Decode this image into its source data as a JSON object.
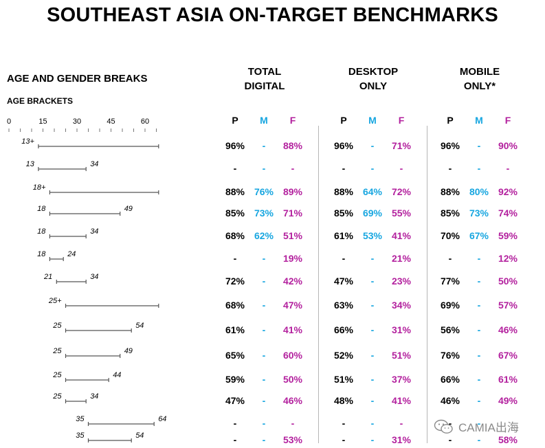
{
  "title": "SOUTHEAST ASIA ON-TARGET BENCHMARKS",
  "section_heading": "AGE AND GENDER BREAKS",
  "sub_heading": "AGE BRACKETS",
  "groups": [
    {
      "line1": "TOTAL",
      "line2": "DIGITAL"
    },
    {
      "line1": "DESKTOP",
      "line2": "ONLY"
    },
    {
      "line1": "MOBILE",
      "line2": "ONLY*"
    }
  ],
  "column_keys": [
    "P",
    "M",
    "F"
  ],
  "colors": {
    "p": "#000000",
    "m": "#17a6e0",
    "f": "#b3219e",
    "bracket": "#555555",
    "divider": "#b5b5b5"
  },
  "watermark": {
    "text": "CAMIA出海",
    "icon": "wechat-icon"
  },
  "chart_data": {
    "type": "table",
    "axis": {
      "ticks": [
        0,
        15,
        30,
        45,
        60
      ],
      "range": [
        0,
        66
      ],
      "minor_step": 5
    },
    "rows": [
      {
        "start_label": "13+",
        "end_label": "",
        "start": 13,
        "end": 66,
        "values": [
          [
            "96%",
            "-",
            "88%"
          ],
          [
            "96%",
            "-",
            "71%"
          ],
          [
            "96%",
            "-",
            "90%"
          ]
        ]
      },
      {
        "start_label": "13",
        "end_label": "34",
        "start": 13,
        "end": 34,
        "values": [
          [
            "-",
            "-",
            "-"
          ],
          [
            "-",
            "-",
            "-"
          ],
          [
            "-",
            "-",
            "-"
          ]
        ]
      },
      {
        "start_label": "18+",
        "end_label": "",
        "start": 18,
        "end": 66,
        "values": [
          [
            "88%",
            "76%",
            "89%"
          ],
          [
            "88%",
            "64%",
            "72%"
          ],
          [
            "88%",
            "80%",
            "92%"
          ]
        ]
      },
      {
        "start_label": "18",
        "end_label": "49",
        "start": 18,
        "end": 49,
        "values": [
          [
            "85%",
            "73%",
            "71%"
          ],
          [
            "85%",
            "69%",
            "55%"
          ],
          [
            "85%",
            "73%",
            "74%"
          ]
        ]
      },
      {
        "start_label": "18",
        "end_label": "34",
        "start": 18,
        "end": 34,
        "values": [
          [
            "68%",
            "62%",
            "51%"
          ],
          [
            "61%",
            "53%",
            "41%"
          ],
          [
            "70%",
            "67%",
            "59%"
          ]
        ]
      },
      {
        "start_label": "18",
        "end_label": "24",
        "start": 18,
        "end": 24,
        "values": [
          [
            "-",
            "-",
            "19%"
          ],
          [
            "-",
            "-",
            "21%"
          ],
          [
            "-",
            "-",
            "12%"
          ]
        ]
      },
      {
        "start_label": "21",
        "end_label": "34",
        "start": 21,
        "end": 34,
        "values": [
          [
            "72%",
            "-",
            "42%"
          ],
          [
            "47%",
            "-",
            "23%"
          ],
          [
            "77%",
            "-",
            "50%"
          ]
        ]
      },
      {
        "start_label": "25+",
        "end_label": "",
        "start": 25,
        "end": 66,
        "values": [
          [
            "68%",
            "-",
            "47%"
          ],
          [
            "63%",
            "-",
            "34%"
          ],
          [
            "69%",
            "-",
            "57%"
          ]
        ]
      },
      {
        "start_label": "25",
        "end_label": "54",
        "start": 25,
        "end": 54,
        "values": [
          [
            "61%",
            "-",
            "41%"
          ],
          [
            "66%",
            "-",
            "31%"
          ],
          [
            "56%",
            "-",
            "46%"
          ]
        ]
      },
      {
        "start_label": "25",
        "end_label": "49",
        "start": 25,
        "end": 49,
        "values": [
          [
            "65%",
            "-",
            "60%"
          ],
          [
            "52%",
            "-",
            "51%"
          ],
          [
            "76%",
            "-",
            "67%"
          ]
        ]
      },
      {
        "start_label": "25",
        "end_label": "44",
        "start": 25,
        "end": 44,
        "values": [
          [
            "59%",
            "-",
            "50%"
          ],
          [
            "51%",
            "-",
            "37%"
          ],
          [
            "66%",
            "-",
            "61%"
          ]
        ]
      },
      {
        "start_label": "25",
        "end_label": "34",
        "start": 25,
        "end": 34,
        "values": [
          [
            "47%",
            "-",
            "46%"
          ],
          [
            "48%",
            "-",
            "41%"
          ],
          [
            "46%",
            "-",
            "49%"
          ]
        ]
      },
      {
        "start_label": "35",
        "end_label": "64",
        "start": 35,
        "end": 64,
        "values": [
          [
            "-",
            "-",
            "-"
          ],
          [
            "-",
            "-",
            "-"
          ],
          [
            "-",
            "-",
            ""
          ]
        ]
      },
      {
        "start_label": "35",
        "end_label": "54",
        "start": 35,
        "end": 54,
        "values": [
          [
            "-",
            "-",
            "53%"
          ],
          [
            "-",
            "-",
            "31%"
          ],
          [
            "-",
            "-",
            "58%"
          ]
        ]
      }
    ]
  }
}
